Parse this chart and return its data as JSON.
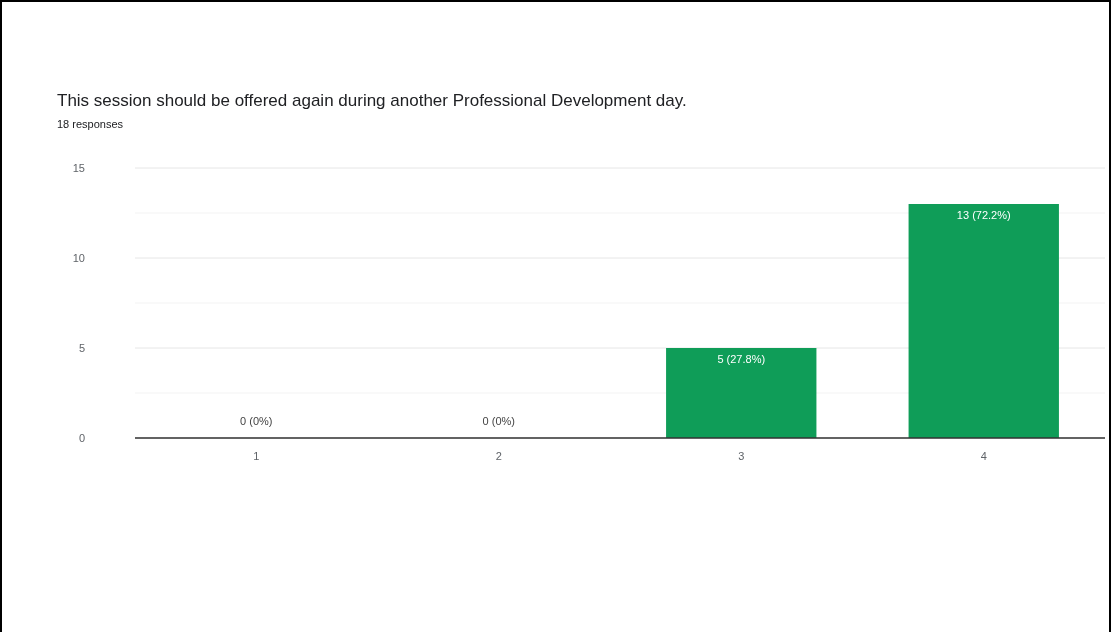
{
  "chart_data": {
    "type": "bar",
    "title": "This session should be offered again during another Professional Development day.",
    "subtitle": "18 responses",
    "categories": [
      "1",
      "2",
      "3",
      "4"
    ],
    "values": [
      0,
      0,
      5,
      13
    ],
    "value_labels": [
      "0 (0%)",
      "0 (0%)",
      "5 (27.8%)",
      "13 (72.2%)"
    ],
    "color": "#0f9d58",
    "ylim": [
      0,
      15
    ],
    "yticks": [
      0,
      {
        "value": 2.5,
        "label": null
      },
      5,
      {
        "value": 7.5,
        "label": null
      },
      10,
      {
        "value": 12.5,
        "label": null
      },
      15
    ],
    "grid": "y"
  }
}
